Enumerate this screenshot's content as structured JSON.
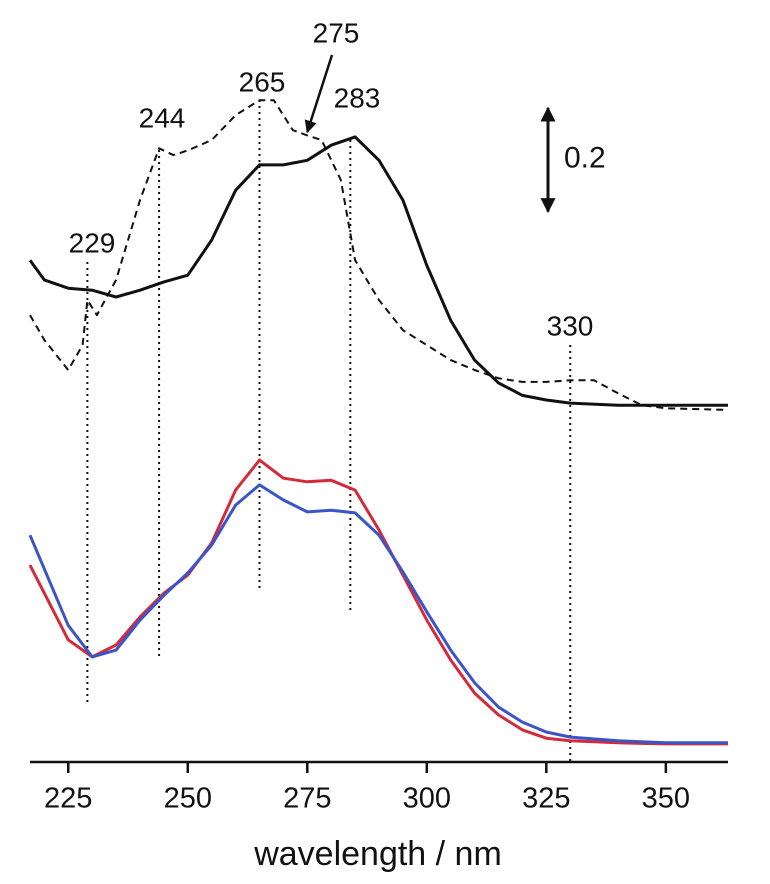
{
  "chart_data": {
    "type": "line",
    "x_label": "wavelength / nm",
    "xlim": [
      217,
      363
    ],
    "xticks": [
      225,
      250,
      275,
      300,
      325,
      350
    ],
    "ylim": [
      0,
      1.4
    ],
    "scale_bar": 0.2,
    "annotations": [
      {
        "text": "229",
        "x": 229
      },
      {
        "text": "244",
        "x": 244
      },
      {
        "text": "265",
        "x": 265
      },
      {
        "text": "275",
        "x": 275
      },
      {
        "text": "283",
        "x": 284
      },
      {
        "text": "330",
        "x": 330
      }
    ],
    "series": [
      {
        "color": "#111111",
        "dash": true,
        "x": [
          217,
          220,
          225,
          228,
          229,
          231,
          235,
          240,
          244,
          247,
          250,
          255,
          260,
          265,
          268,
          272,
          275,
          278,
          282,
          285,
          290,
          295,
          300,
          305,
          310,
          315,
          320,
          325,
          330,
          335,
          340,
          345,
          350,
          363
        ],
        "values": [
          0.863,
          0.815,
          0.757,
          0.805,
          0.892,
          0.863,
          0.931,
          1.085,
          1.185,
          1.172,
          1.181,
          1.201,
          1.249,
          1.278,
          1.278,
          1.22,
          1.21,
          1.201,
          1.124,
          0.969,
          0.892,
          0.834,
          0.805,
          0.776,
          0.757,
          0.741,
          0.734,
          0.734,
          0.737,
          0.737,
          0.712,
          0.689,
          0.683,
          0.68
        ]
      },
      {
        "color": "#111111",
        "dash": false,
        "x": [
          217,
          220,
          225,
          230,
          235,
          240,
          245,
          250,
          255,
          260,
          265,
          270,
          275,
          280,
          285,
          290,
          295,
          300,
          305,
          310,
          315,
          320,
          325,
          330,
          340,
          350,
          363
        ],
        "values": [
          0.969,
          0.931,
          0.915,
          0.911,
          0.898,
          0.911,
          0.927,
          0.94,
          1.008,
          1.104,
          1.153,
          1.153,
          1.162,
          1.191,
          1.207,
          1.162,
          1.085,
          0.959,
          0.853,
          0.776,
          0.732,
          0.708,
          0.699,
          0.693,
          0.689,
          0.689,
          0.689
        ]
      },
      {
        "color": "#d42a3a",
        "dash": false,
        "x": [
          217,
          225,
          230,
          235,
          240,
          245,
          250,
          255,
          260,
          265,
          270,
          275,
          280,
          285,
          290,
          295,
          300,
          305,
          310,
          315,
          320,
          325,
          330,
          340,
          350,
          363
        ],
        "values": [
          0.38,
          0.236,
          0.203,
          0.226,
          0.28,
          0.326,
          0.361,
          0.423,
          0.525,
          0.583,
          0.548,
          0.541,
          0.544,
          0.525,
          0.448,
          0.361,
          0.274,
          0.197,
          0.133,
          0.091,
          0.062,
          0.046,
          0.041,
          0.037,
          0.035,
          0.035
        ]
      },
      {
        "color": "#3a55c8",
        "dash": false,
        "x": [
          217,
          225,
          230,
          235,
          240,
          245,
          250,
          255,
          260,
          265,
          270,
          275,
          280,
          285,
          290,
          295,
          300,
          305,
          310,
          315,
          320,
          325,
          330,
          340,
          350,
          363
        ],
        "values": [
          0.438,
          0.264,
          0.203,
          0.216,
          0.274,
          0.322,
          0.365,
          0.419,
          0.496,
          0.535,
          0.506,
          0.483,
          0.486,
          0.481,
          0.438,
          0.367,
          0.29,
          0.216,
          0.153,
          0.106,
          0.077,
          0.058,
          0.048,
          0.041,
          0.037,
          0.037
        ]
      }
    ]
  }
}
